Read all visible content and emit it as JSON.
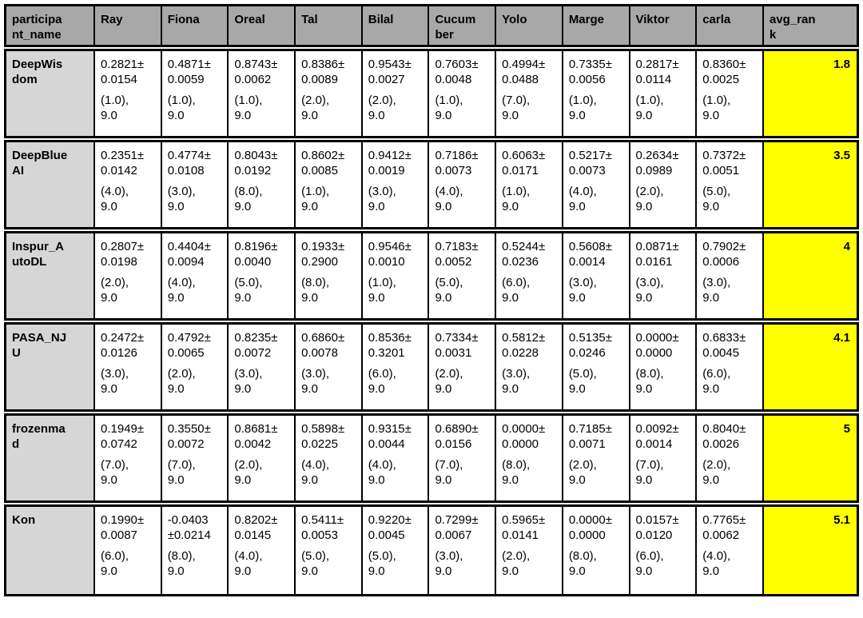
{
  "colors": {
    "header_bg": "#a8a8a8",
    "name_column_bg": "#d6d6d6",
    "avg_rank_bg": "#ffff00",
    "cell_bg": "#ffffff",
    "border": "#000000",
    "text": "#000000"
  },
  "chart_data": {
    "type": "table",
    "columns": [
      [
        "participa",
        "nt_name"
      ],
      [
        "Ray"
      ],
      [
        "Fiona"
      ],
      [
        "Oreal"
      ],
      [
        "Tal"
      ],
      [
        "Bilal"
      ],
      [
        "Cucum",
        "ber"
      ],
      [
        "Yolo"
      ],
      [
        "Marge"
      ],
      [
        "Viktor"
      ],
      [
        "carla"
      ],
      [
        "avg_ran",
        "k"
      ]
    ],
    "rows": [
      {
        "name": [
          "DeepWis",
          "dom"
        ],
        "cells": [
          [
            "0.2821±",
            "0.0154",
            "(1.0),",
            "9.0"
          ],
          [
            "0.4871±",
            "0.0059",
            "(1.0),",
            "9.0"
          ],
          [
            "0.8743±",
            "0.0062",
            "(1.0),",
            "9.0"
          ],
          [
            "0.8386±",
            "0.0089",
            "(2.0),",
            "9.0"
          ],
          [
            "0.9543±",
            "0.0027",
            "(2.0),",
            "9.0"
          ],
          [
            "0.7603±",
            "0.0048",
            "(1.0),",
            "9.0"
          ],
          [
            "0.4994±",
            "0.0488",
            "(7.0),",
            "9.0"
          ],
          [
            "0.7335±",
            "0.0056",
            "(1.0),",
            "9.0"
          ],
          [
            "0.2817±",
            "0.0114",
            "(1.0),",
            "9.0"
          ],
          [
            "0.8360±",
            "0.0025",
            "(1.0),",
            "9.0"
          ]
        ],
        "avg_rank": "1.8"
      },
      {
        "name": [
          "DeepBlue",
          "AI"
        ],
        "cells": [
          [
            "0.2351±",
            "0.0142",
            "(4.0),",
            "9.0"
          ],
          [
            "0.4774±",
            "0.0108",
            "(3.0),",
            "9.0"
          ],
          [
            "0.8043±",
            "0.0192",
            "(8.0),",
            "9.0"
          ],
          [
            "0.8602±",
            "0.0085",
            "(1.0),",
            "9.0"
          ],
          [
            "0.9412±",
            "0.0019",
            "(3.0),",
            "9.0"
          ],
          [
            "0.7186±",
            "0.0073",
            "(4.0),",
            "9.0"
          ],
          [
            "0.6063±",
            "0.0171",
            "(1.0),",
            "9.0"
          ],
          [
            "0.5217±",
            "0.0073",
            "(4.0),",
            "9.0"
          ],
          [
            "0.2634±",
            "0.0989",
            "(2.0),",
            "9.0"
          ],
          [
            "0.7372±",
            "0.0051",
            "(5.0),",
            "9.0"
          ]
        ],
        "avg_rank": "3.5"
      },
      {
        "name": [
          "Inspur_A",
          "utoDL"
        ],
        "cells": [
          [
            "0.2807±",
            "0.0198",
            "(2.0),",
            "9.0"
          ],
          [
            "0.4404±",
            "0.0094",
            "(4.0),",
            "9.0"
          ],
          [
            "0.8196±",
            "0.0040",
            "(5.0),",
            "9.0"
          ],
          [
            "0.1933±",
            "0.2900",
            "(8.0),",
            "9.0"
          ],
          [
            "0.9546±",
            "0.0010",
            "(1.0),",
            "9.0"
          ],
          [
            "0.7183±",
            "0.0052",
            "(5.0),",
            "9.0"
          ],
          [
            "0.5244±",
            "0.0236",
            "(6.0),",
            "9.0"
          ],
          [
            "0.5608±",
            "0.0014",
            "(3.0),",
            "9.0"
          ],
          [
            "0.0871±",
            "0.0161",
            "(3.0),",
            "9.0"
          ],
          [
            "0.7902±",
            "0.0006",
            "(3.0),",
            "9.0"
          ]
        ],
        "avg_rank": "4"
      },
      {
        "name": [
          "PASA_NJ",
          "U"
        ],
        "cells": [
          [
            "0.2472±",
            "0.0126",
            "(3.0),",
            "9.0"
          ],
          [
            "0.4792±",
            "0.0065",
            "(2.0),",
            "9.0"
          ],
          [
            "0.8235±",
            "0.0072",
            "(3.0),",
            "9.0"
          ],
          [
            "0.6860±",
            "0.0078",
            "(3.0),",
            "9.0"
          ],
          [
            "0.8536±",
            "0.3201",
            "(6.0),",
            "9.0"
          ],
          [
            "0.7334±",
            "0.0031",
            "(2.0),",
            "9.0"
          ],
          [
            "0.5812±",
            "0.0228",
            "(3.0),",
            "9.0"
          ],
          [
            "0.5135±",
            "0.0246",
            "(5.0),",
            "9.0"
          ],
          [
            "0.0000±",
            "0.0000",
            "(8.0),",
            "9.0"
          ],
          [
            "0.6833±",
            "0.0045",
            "(6.0),",
            "9.0"
          ]
        ],
        "avg_rank": "4.1"
      },
      {
        "name": [
          "frozenma",
          "d"
        ],
        "cells": [
          [
            "0.1949±",
            "0.0742",
            "(7.0),",
            "9.0"
          ],
          [
            "0.3550±",
            "0.0072",
            "(7.0),",
            "9.0"
          ],
          [
            "0.8681±",
            "0.0042",
            "(2.0),",
            "9.0"
          ],
          [
            "0.5898±",
            "0.0225",
            "(4.0),",
            "9.0"
          ],
          [
            "0.9315±",
            "0.0044",
            "(4.0),",
            "9.0"
          ],
          [
            "0.6890±",
            "0.0156",
            "(7.0),",
            "9.0"
          ],
          [
            "0.0000±",
            "0.0000",
            "(8.0),",
            "9.0"
          ],
          [
            "0.7185±",
            "0.0071",
            "(2.0),",
            "9.0"
          ],
          [
            "0.0092±",
            "0.0014",
            "(7.0),",
            "9.0"
          ],
          [
            "0.8040±",
            "0.0026",
            "(2.0),",
            "9.0"
          ]
        ],
        "avg_rank": "5"
      },
      {
        "name": [
          "Kon"
        ],
        "cells": [
          [
            "0.1990±",
            "0.0087",
            "(6.0),",
            "9.0"
          ],
          [
            "-0.0403",
            "±0.0214",
            "(8.0),",
            "9.0"
          ],
          [
            "0.8202±",
            "0.0145",
            "(4.0),",
            "9.0"
          ],
          [
            "0.5411±",
            "0.0053",
            "(5.0),",
            "9.0"
          ],
          [
            "0.9220±",
            "0.0045",
            "(5.0),",
            "9.0"
          ],
          [
            "0.7299±",
            "0.0067",
            "(3.0),",
            "9.0"
          ],
          [
            "0.5965±",
            "0.0141",
            "(2.0),",
            "9.0"
          ],
          [
            "0.0000±",
            "0.0000",
            "(8.0),",
            "9.0"
          ],
          [
            "0.0157±",
            "0.0120",
            "(6.0),",
            "9.0"
          ],
          [
            "0.7765±",
            "0.0062",
            "(4.0),",
            "9.0"
          ]
        ],
        "avg_rank": "5.1"
      }
    ]
  }
}
